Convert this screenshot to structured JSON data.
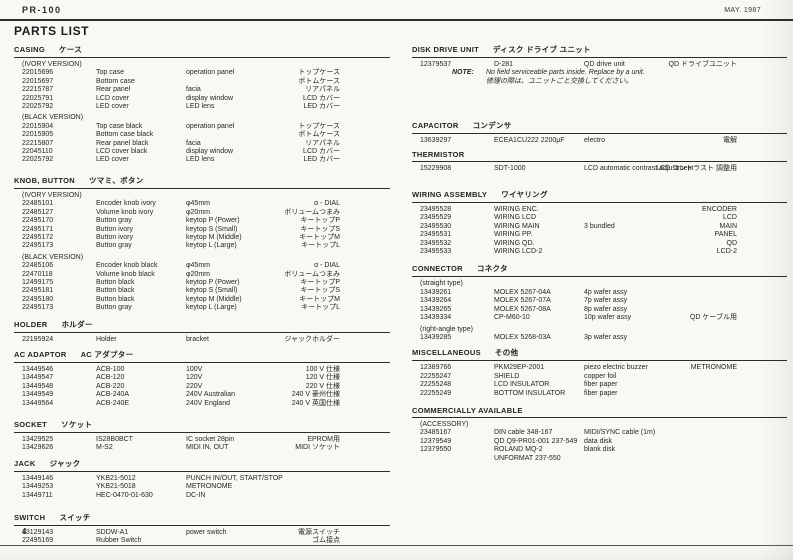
{
  "page": {
    "model": "PR-100",
    "date": "MAY. 1987",
    "title": "PARTS LIST",
    "page_number": "4"
  },
  "columns": {
    "left": [
      {
        "title": "CASING",
        "title_jp": "ケース",
        "rows": [
          [
            "(IVORY VERSION)",
            "",
            "",
            ""
          ],
          [
            "22015696",
            "Top case",
            "operation panel",
            "トップケース"
          ],
          [
            "22015697",
            "Bottom case",
            "",
            "ボトムケース"
          ],
          [
            "22215787",
            "Rear panel",
            "facia",
            "リアパネル"
          ],
          [
            "22025791",
            "LCD cover",
            "display window",
            "LCD カバー"
          ],
          [
            "22025792",
            "LED cover",
            "LED lens",
            "LED カバー"
          ],
          [
            "(BLACK VERSION)",
            "",
            "",
            ""
          ],
          [
            "22015904",
            "Top case black",
            "operation panel",
            "トップケース"
          ],
          [
            "22015905",
            "Bottom case black",
            "",
            "ボトムケース"
          ],
          [
            "22215807",
            "Rear panel black",
            "facia",
            "リアパネル"
          ],
          [
            "22045110",
            "LCD cover black",
            "display window",
            "LCD カバー"
          ],
          [
            "22025792",
            "LED cover",
            "LED lens",
            "LED カバー"
          ]
        ]
      },
      {
        "title": "KNOB, BUTTON",
        "title_jp": "ツマミ、ボタン",
        "rows": [
          [
            "(IVORY VERSION)",
            "",
            "",
            ""
          ],
          [
            "22485101",
            "Encoder knob ivory",
            "φ45mm",
            "α - DIAL"
          ],
          [
            "22485127",
            "Volume knob ivory",
            "φ20mm",
            "ボリュームつまみ"
          ],
          [
            "22495170",
            "Button gray",
            "keytop P (Power)",
            "キートップP"
          ],
          [
            "22495171",
            "Button ivory",
            "keytop S (Small)",
            "キートップS"
          ],
          [
            "22495172",
            "Button ivory",
            "keytop M (Middle)",
            "キートップM"
          ],
          [
            "22495173",
            "Button gray",
            "keytop L (Large)",
            "キートップL"
          ],
          [
            "(BLACK VERSION)",
            "",
            "",
            ""
          ],
          [
            "22485106",
            "Encoder knob black",
            "φ45mm",
            "α - DIAL"
          ],
          [
            "22470118",
            "Volume knob black",
            "φ20mm",
            "ボリュームつまみ"
          ],
          [
            "12499175",
            "Button black",
            "keytop P (Power)",
            "キートップP"
          ],
          [
            "22495181",
            "Button black",
            "keytop S (Small)",
            "キートップS"
          ],
          [
            "22495180",
            "Button black",
            "keytop M (Middle)",
            "キートップM"
          ],
          [
            "22495173",
            "Button gray",
            "keytop L (Large)",
            "キートップL"
          ]
        ]
      },
      {
        "title": "HOLDER",
        "title_jp": "ホルダー",
        "rows": [
          [
            "22195924",
            "Holder",
            "bracket",
            "ジャックホルダー"
          ]
        ]
      },
      {
        "title": "AC ADAPTOR",
        "title_jp": "AC アダプター",
        "rows": [
          [
            "13449546",
            "ACB-100",
            "100V",
            "100 V 仕様"
          ],
          [
            "13449547",
            "ACB-120",
            "120V",
            "120 V 仕様"
          ],
          [
            "13449548",
            "ACB-220",
            "220V",
            "220 V 仕様"
          ],
          [
            "13449549",
            "ACB-240A",
            "240V Australian",
            "240 V 豪州仕様"
          ],
          [
            "13449564",
            "ACB-240E",
            "240V England",
            "240 V 英国仕様"
          ]
        ]
      },
      {
        "title": "SOCKET",
        "title_jp": "ソケット",
        "rows": [
          [
            "13429525",
            "IS28B0BCT",
            "IC socket 28pin",
            "EPROM用"
          ],
          [
            "13429626",
            "M-S2",
            "MIDI IN, OUT",
            "MIDI ソケット"
          ]
        ]
      },
      {
        "title": "JACK",
        "title_jp": "ジャック",
        "rows": [
          [
            "13449146",
            "YKB21-5012",
            "PUNCH IN/OUT, START/STOP",
            ""
          ],
          [
            "13449253",
            "YKB21-5018",
            "METRONOME",
            ""
          ],
          [
            "13449711",
            "HEC-0470-01-630",
            "DC-IN",
            ""
          ]
        ]
      },
      {
        "title": "SWITCH",
        "title_jp": "スイッチ",
        "rows": [
          [
            "13129143",
            "SDDW-A1",
            "power switch",
            "電源スイッチ"
          ],
          [
            "22495169",
            "Rubber Switch",
            "",
            "ゴム接点"
          ]
        ]
      }
    ],
    "right": [
      {
        "title": "DISK DRIVE UNIT",
        "title_jp": "ディスク ドライブ ユニット",
        "rows": [
          [
            "12379537",
            "D-281",
            "QD drive unit",
            "QD ドライブユニット"
          ],
          {
            "note_label": "NOTE:",
            "note_text": "No field serviceable parts inside. Replace by a unit."
          },
          {
            "note_label": "",
            "note_text": "修理の際は、ユニットごと交換してください。"
          }
        ]
      },
      {
        "title": "CAPACITOR",
        "title_jp": "コンデンサ",
        "rows": [
          [
            "13639297",
            "ECEA1CU222 2200μF",
            "electro",
            "電解"
          ]
        ]
      },
      {
        "title": "THERMISTOR",
        "title_jp": "",
        "rows": [
          [
            "15229908",
            "SDT-1000",
            "LCD automatic contrast adjustment",
            "LCD コントラスト 調整用"
          ]
        ]
      },
      {
        "title": "WIRING ASSEMBLY",
        "title_jp": "ワイヤリング",
        "rows": [
          [
            "23495528",
            "WIRING ENC.",
            "",
            "ENCODER"
          ],
          [
            "23495529",
            "WIRING LCD",
            "",
            "LCD"
          ],
          [
            "23495530",
            "WIRING MAIN",
            "3 bundled",
            "MAIN"
          ],
          [
            "23495531",
            "WIRING PP.",
            "",
            "PANEL"
          ],
          [
            "23495532",
            "WIRING QD.",
            "",
            "QD"
          ],
          [
            "23495533",
            "WIRING LCD-2",
            "",
            "LCD-2"
          ]
        ]
      },
      {
        "title": "CONNECTOR",
        "title_jp": "コネクタ",
        "rows": [
          [
            "(straight type)",
            "",
            "",
            ""
          ],
          [
            "13439261",
            "MOLEX 5267-04A",
            "4p wafer assy",
            ""
          ],
          [
            "13439264",
            "MOLEX 5267-07A",
            "7p wafer assy",
            ""
          ],
          [
            "13439265",
            "MOLEX 5267-08A",
            "8p wafer assy",
            ""
          ],
          [
            "13439334",
            "CP-M60-10",
            "10p wafer assy",
            "QD ケーブル用"
          ],
          [
            "(right-angle type)",
            "",
            "",
            ""
          ],
          [
            "13439285",
            "MOLEX 5268-03A",
            "3p wafer assy",
            ""
          ]
        ]
      },
      {
        "title": "MISCELLANEOUS",
        "title_jp": "その他",
        "rows": [
          [
            "12389766",
            "PKM29EP-2001",
            "piezo electric buzzer",
            "METRONOME"
          ],
          [
            "22255247",
            "SHIELD",
            "copper foil",
            ""
          ],
          [
            "22255248",
            "LCD INSULATOR",
            "fiber paper",
            ""
          ],
          [
            "22255249",
            "BOTTOM INSULATOR",
            "fiber paper",
            ""
          ]
        ]
      },
      {
        "title": "COMMERCIALLY AVAILABLE",
        "title_jp": "",
        "rows": [
          [
            "(ACCESSORY)",
            "",
            "",
            ""
          ],
          [
            "23485167",
            "DIN cable 348-167",
            "MIDI/SYNC cable (1m)",
            ""
          ],
          [
            "12379549",
            "QD Q9-PR01-001 237-549",
            "data disk",
            ""
          ],
          [
            "12379550",
            "ROLAND MQ-2",
            "blank disk",
            ""
          ],
          [
            "",
            "UNFORMAT 237-550",
            "",
            ""
          ]
        ]
      }
    ]
  }
}
